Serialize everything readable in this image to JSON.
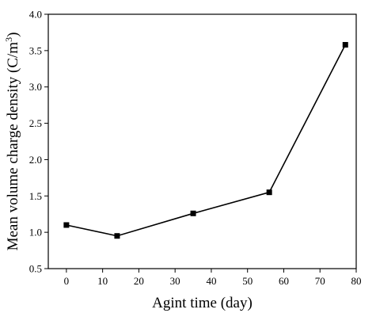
{
  "chart_data": {
    "type": "line",
    "xlabel": "Agint time (day)",
    "ylabel_main": "Mean volume charge density (C/m",
    "ylabel_sup": "3",
    "ylabel_close": ")",
    "xlim": [
      -5,
      80
    ],
    "ylim": [
      0.5,
      4.0
    ],
    "x_ticks": [
      0,
      10,
      20,
      30,
      40,
      50,
      60,
      70,
      80
    ],
    "y_ticks": [
      0.5,
      1.0,
      1.5,
      2.0,
      2.5,
      3.0,
      3.5,
      4.0
    ],
    "x_tick_labels": [
      "0",
      "10",
      "20",
      "30",
      "40",
      "50",
      "60",
      "70",
      "80"
    ],
    "y_tick_labels": [
      "0.5",
      "1.0",
      "1.5",
      "2.0",
      "2.5",
      "3.0",
      "3.5",
      "4.0"
    ],
    "grid": false,
    "marker": "square",
    "series": [
      {
        "x": [
          0,
          14,
          35,
          56,
          77
        ],
        "y": [
          1.1,
          0.95,
          1.26,
          1.55,
          3.58
        ]
      }
    ]
  }
}
